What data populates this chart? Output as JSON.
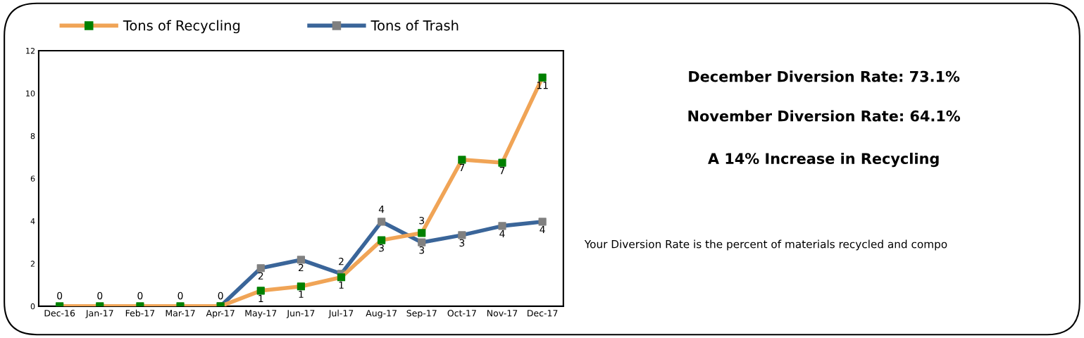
{
  "chart_data": [
    {
      "type": "line",
      "categories": [
        "Dec-16",
        "Jan-17",
        "Feb-17",
        "Mar-17",
        "Apr-17",
        "May-17",
        "Jun-17",
        "Jul-17",
        "Aug-17",
        "Sep-17",
        "Oct-17",
        "Nov-17",
        "Dec-17"
      ],
      "series": [
        {
          "name": "Tons of Recycling",
          "color": "#f0a456",
          "colors": [
            "#008000",
            "#008000",
            "#008000",
            "#008000",
            "#008000",
            "#008000",
            "#008000",
            "#008000",
            "#008000",
            "#008000",
            "#008000",
            "#008000",
            "#008000"
          ],
          "values": [
            0,
            0,
            0,
            0,
            0,
            0.73,
            0.93,
            1.36,
            3.1,
            3.44,
            6.88,
            6.74,
            10.74
          ],
          "value_labels": [
            "0",
            "0",
            "0",
            "0",
            "0",
            "1",
            "1",
            "1",
            "3",
            "3",
            "7",
            "7",
            "11"
          ]
        },
        {
          "name": "Tons of Trash",
          "color": "#3a6599",
          "colors": [
            "#808080",
            "#808080",
            "#808080",
            "#808080",
            "#808080",
            "#808080",
            "#808080",
            "#808080",
            "#808080",
            "#808080",
            "#808080",
            "#808080",
            "#808080"
          ],
          "values": [
            null,
            null,
            null,
            null,
            0,
            1.79,
            2.18,
            1.52,
            3.97,
            3.0,
            3.34,
            3.77,
            3.97
          ],
          "value_labels": [
            null,
            null,
            null,
            null,
            null,
            "2",
            "2",
            "2",
            "4",
            "3",
            "3",
            "4",
            "4"
          ]
        }
      ],
      "ylim": [
        0,
        12
      ],
      "yticks": [
        0,
        2,
        4,
        6,
        8,
        10,
        12
      ],
      "grid": false,
      "legend": "top",
      "marker": "square",
      "line_style": "solid"
    },
    {
      "type": "other",
      "annotations": [
        "December Diversion Rate: 73.1%",
        "November Diversion Rate: 64.1%",
        "A 14% Increase in Recycling",
        "Your Diversion Rate is the percent of materials recycled and compo"
      ]
    }
  ]
}
